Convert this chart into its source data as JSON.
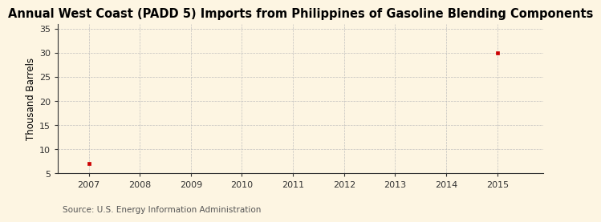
{
  "title": "Annual West Coast (PADD 5) Imports from Philippines of Gasoline Blending Components",
  "ylabel": "Thousand Barrels",
  "source": "Source: U.S. Energy Information Administration",
  "x_data": [
    2007,
    2015
  ],
  "y_data": [
    7,
    30
  ],
  "xlim": [
    2006.4,
    2015.9
  ],
  "ylim": [
    5,
    36
  ],
  "yticks": [
    5,
    10,
    15,
    20,
    25,
    30,
    35
  ],
  "xticks": [
    2007,
    2008,
    2009,
    2010,
    2011,
    2012,
    2013,
    2014,
    2015
  ],
  "marker_color": "#cc0000",
  "marker": "s",
  "marker_size": 3.5,
  "background_color": "#fdf5e2",
  "grid_color": "#bbbbbb",
  "title_fontsize": 10.5,
  "axis_fontsize": 8.5,
  "tick_fontsize": 8,
  "source_fontsize": 7.5
}
